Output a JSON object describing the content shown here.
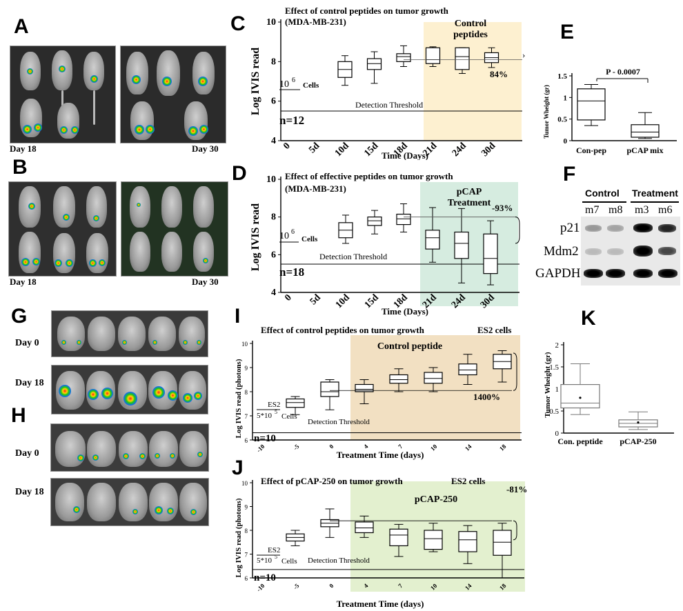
{
  "panels": {
    "A": "A",
    "B": "B",
    "C": "C",
    "D": "D",
    "E": "E",
    "F": "F",
    "G": "G",
    "H": "H",
    "I": "I",
    "J": "J",
    "K": "K"
  },
  "photos": {
    "A": {
      "left_day": "Day 18",
      "right_day": "Day 30"
    },
    "B": {
      "left_day": "Day 18",
      "right_day": "Day 30"
    },
    "G": {
      "top_day": "Day 0",
      "bottom_day": "Day 18"
    },
    "H": {
      "top_day": "Day 0",
      "bottom_day": "Day 18"
    }
  },
  "blot": {
    "group_control": "Control",
    "group_treatment": "Treatment",
    "lanes": [
      "m7",
      "m8",
      "m3",
      "m6"
    ],
    "rows": [
      "p21",
      "Mdm2",
      "GAPDH"
    ]
  },
  "chart_data": [
    {
      "id": "C",
      "type": "box",
      "title": "Effect of control peptides on tumor growth",
      "subtitle": "(MDA-MB-231)",
      "ylabel": "Log IVIS read",
      "xlabel": "Time (Days)",
      "categories": [
        "0",
        "5d",
        "10d",
        "15d",
        "18d",
        "21d",
        "24d",
        "30d"
      ],
      "ylim": [
        4,
        10
      ],
      "yticks": [
        4,
        6,
        8,
        10
      ],
      "threshold": 5.5,
      "threshold_label": "Detection Threshold",
      "n_label": "n=12",
      "cells_label": "10",
      "cells_exp": "6",
      "cells_unit": "Cells",
      "shade_label": [
        "Control",
        "peptides"
      ],
      "shade_color": "#fdf0d0",
      "change_label": "84%",
      "boxes": [
        null,
        null,
        {
          "min": 6.8,
          "q1": 7.2,
          "med": 7.6,
          "q3": 8.0,
          "max": 8.3
        },
        {
          "min": 6.9,
          "q1": 7.6,
          "med": 7.9,
          "q3": 8.15,
          "max": 8.5
        },
        {
          "min": 7.75,
          "q1": 8.0,
          "med": 8.25,
          "q3": 8.4,
          "max": 8.8
        },
        {
          "min": 7.75,
          "q1": 7.9,
          "med": 8.1,
          "q3": 8.7,
          "max": 8.75
        },
        {
          "min": 7.4,
          "q1": 7.6,
          "med": 8.25,
          "q3": 8.7,
          "max": 8.7
        },
        {
          "min": 7.7,
          "q1": 7.95,
          "med": 8.2,
          "q3": 8.45,
          "max": 8.7
        }
      ]
    },
    {
      "id": "D",
      "type": "box",
      "title": "Effect of effective peptides on tumor growth",
      "subtitle": "(MDA-MB-231)",
      "ylabel": "Log IVIS read",
      "xlabel": "Time (Days)",
      "categories": [
        "0",
        "5d",
        "10d",
        "15d",
        "18d",
        "21d",
        "24d",
        "30d"
      ],
      "ylim": [
        4,
        10
      ],
      "yticks": [
        4,
        6,
        8,
        10
      ],
      "threshold": 5.5,
      "threshold_label": "Detection Threshold",
      "n_label": "n=18",
      "cells_label": "10",
      "cells_exp": "6",
      "cells_unit": "Cells",
      "shade_label": [
        "pCAP",
        "Treatment"
      ],
      "shade_color": "#d6ece0",
      "change_label": "-93%",
      "boxes": [
        null,
        null,
        {
          "min": 6.6,
          "q1": 6.9,
          "med": 7.3,
          "q3": 7.7,
          "max": 8.1
        },
        {
          "min": 7.1,
          "q1": 7.55,
          "med": 7.8,
          "q3": 8.0,
          "max": 8.35
        },
        {
          "min": 7.2,
          "q1": 7.6,
          "med": 7.9,
          "q3": 8.15,
          "max": 8.7
        },
        {
          "min": 5.6,
          "q1": 6.3,
          "med": 6.9,
          "q3": 7.3,
          "max": 8.5
        },
        {
          "min": 4.5,
          "q1": 5.8,
          "med": 6.6,
          "q3": 7.2,
          "max": 8.45
        },
        {
          "min": 4.4,
          "q1": 5.0,
          "med": 5.8,
          "q3": 7.1,
          "max": 7.8
        }
      ]
    },
    {
      "id": "E",
      "type": "box",
      "ylabel": "Tumor Wheight (gr)",
      "categories": [
        "Con-pep",
        "pCAP mix"
      ],
      "ylim": [
        0,
        1.5
      ],
      "yticks": [
        0,
        0.5,
        1,
        1.5
      ],
      "p_label": "P - 0.0007",
      "boxes": [
        {
          "min": 0.35,
          "q1": 0.48,
          "med": 0.92,
          "q3": 1.2,
          "max": 1.3
        },
        {
          "min": 0.05,
          "q1": 0.08,
          "med": 0.2,
          "q3": 0.37,
          "max": 0.65
        }
      ]
    },
    {
      "id": "I",
      "type": "box",
      "title": "Effect of control peptides on tumor growth",
      "title_right": "ES2 cells",
      "ylabel": "Log IVIS read (photons)",
      "xlabel": "Treatment Time (days)",
      "categories": [
        "-10",
        "-5",
        "0",
        "4",
        "7",
        "10",
        "14",
        "18"
      ],
      "ylim": [
        6,
        10
      ],
      "yticks": [
        6,
        7,
        8,
        9,
        10
      ],
      "threshold": 6.3,
      "threshold_label": "Detection Threshold",
      "n_label": "n=10",
      "cells_label1": "ES2",
      "cells_label2": "5*10",
      "cells_exp": "5",
      "cells_unit": "Cells",
      "shade_label": [
        "Control  peptide"
      ],
      "shade_color": "#f2e0c2",
      "change_label": "1400%",
      "boxes": [
        null,
        {
          "min": 7.05,
          "q1": 7.35,
          "med": 7.55,
          "q3": 7.7,
          "max": 7.8
        },
        {
          "min": 7.25,
          "q1": 7.8,
          "med": 8.0,
          "q3": 8.4,
          "max": 8.5
        },
        {
          "min": 7.5,
          "q1": 8.0,
          "med": 8.1,
          "q3": 8.3,
          "max": 8.5
        },
        {
          "min": 8.0,
          "q1": 8.35,
          "med": 8.5,
          "q3": 8.7,
          "max": 8.95
        },
        {
          "min": 8.0,
          "q1": 8.35,
          "med": 8.55,
          "q3": 8.8,
          "max": 9.0
        },
        {
          "min": 8.3,
          "q1": 8.7,
          "med": 8.9,
          "q3": 9.15,
          "max": 9.55
        },
        {
          "min": 8.4,
          "q1": 8.95,
          "med": 9.25,
          "q3": 9.55,
          "max": 9.7
        }
      ]
    },
    {
      "id": "J",
      "type": "box",
      "title": "Effect of pCAP-250 on tumor growth",
      "title_right": "ES2 cells",
      "ylabel": "Log IVIS read (photons)",
      "xlabel": "Treatment Time (days)",
      "categories": [
        "-10",
        "-5",
        "0",
        "4",
        "7",
        "10",
        "14",
        "18"
      ],
      "ylim": [
        6,
        10
      ],
      "yticks": [
        6,
        7,
        8,
        9,
        10
      ],
      "threshold": 6.35,
      "threshold_label": "Detection Threshold",
      "n_label": "n=10",
      "cells_label1": "ES2",
      "cells_label2": "5*10",
      "cells_exp": "5",
      "cells_unit": "Cells",
      "shade_label": [
        "pCAP-250"
      ],
      "shade_color": "#e3f0cf",
      "change_label": "-81%",
      "boxes": [
        null,
        {
          "min": 7.35,
          "q1": 7.55,
          "med": 7.7,
          "q3": 7.85,
          "max": 8.0
        },
        {
          "min": 7.7,
          "q1": 8.15,
          "med": 8.3,
          "q3": 8.45,
          "max": 8.9
        },
        {
          "min": 7.7,
          "q1": 7.9,
          "med": 8.1,
          "q3": 8.35,
          "max": 8.6
        },
        {
          "min": 6.9,
          "q1": 7.35,
          "med": 7.8,
          "q3": 8.05,
          "max": 8.25
        },
        {
          "min": 7.1,
          "q1": 7.2,
          "med": 7.65,
          "q3": 8.0,
          "max": 8.3
        },
        {
          "min": 6.6,
          "q1": 7.1,
          "med": 7.6,
          "q3": 7.95,
          "max": 8.2
        },
        {
          "min": 6.0,
          "q1": 6.95,
          "med": 7.5,
          "q3": 8.0,
          "max": 8.3
        }
      ]
    },
    {
      "id": "K",
      "type": "box",
      "ylabel": "Tumor Wheight (gr)",
      "categories": [
        "Con. peptide",
        "pCAP-250"
      ],
      "ylim": [
        0,
        2
      ],
      "yticks": [
        0,
        0.5,
        1,
        1.5,
        2
      ],
      "boxes": [
        {
          "min": 0.42,
          "q1": 0.57,
          "med": 0.68,
          "q3": 1.1,
          "max": 1.57,
          "mean": 0.8
        },
        {
          "min": 0.08,
          "q1": 0.14,
          "med": 0.22,
          "q3": 0.3,
          "max": 0.48,
          "mean": 0.24
        }
      ]
    }
  ]
}
